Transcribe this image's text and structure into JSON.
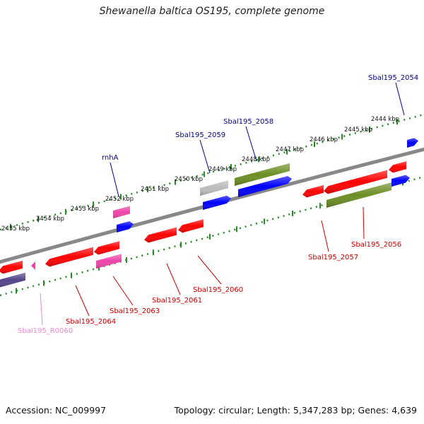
{
  "title": "Shewanella baltica OS195, complete genome",
  "accession": "Accession: NC_009997",
  "topology": "Topology: circular; Length: 5,347,283 bp; Genes: 4,639",
  "colors": {
    "backbone": "#888888",
    "tick": "#2a8a2a",
    "cds_forward": "#0000ff",
    "cds_reverse": "#ff0000",
    "rna": "#ee44aa",
    "olive": "#6b8e23",
    "purple": "#55448a",
    "grey": "#bbbbbb",
    "label_blue": "#00008b",
    "label_red": "#cc0000",
    "label_pink": "#ee88cc"
  },
  "kbp_labels": [
    "2444 kbp",
    "2445 kbp",
    "2446 kbp",
    "2447 kbp",
    "2448 kbp",
    "2449 kbp",
    "2450 kbp",
    "2451 kbp",
    "2452 kbp",
    "2453 kbp",
    "2454 kbp",
    "2455 kbp"
  ],
  "gene_labels": [
    {
      "id": "g2054",
      "text": "Sbal195_2054",
      "color": "label_blue"
    },
    {
      "id": "g2058",
      "text": "Sbal195_2058",
      "color": "label_blue"
    },
    {
      "id": "g2059",
      "text": "Sbal195_2059",
      "color": "label_blue"
    },
    {
      "id": "rnhA",
      "text": "rnhA",
      "color": "label_blue"
    },
    {
      "id": "g2056",
      "text": "Sbal195_2056",
      "color": "label_red"
    },
    {
      "id": "g2057",
      "text": "Sbal195_2057",
      "color": "label_red"
    },
    {
      "id": "g2060",
      "text": "Sbal195_2060",
      "color": "label_red"
    },
    {
      "id": "g2061",
      "text": "Sbal195_2061",
      "color": "label_red"
    },
    {
      "id": "g2063",
      "text": "Sbal195_2063",
      "color": "label_red"
    },
    {
      "id": "g2064",
      "text": "Sbal195_2064",
      "color": "label_red"
    },
    {
      "id": "r0060",
      "text": "Sbal195_R0060",
      "color": "label_pink"
    }
  ]
}
